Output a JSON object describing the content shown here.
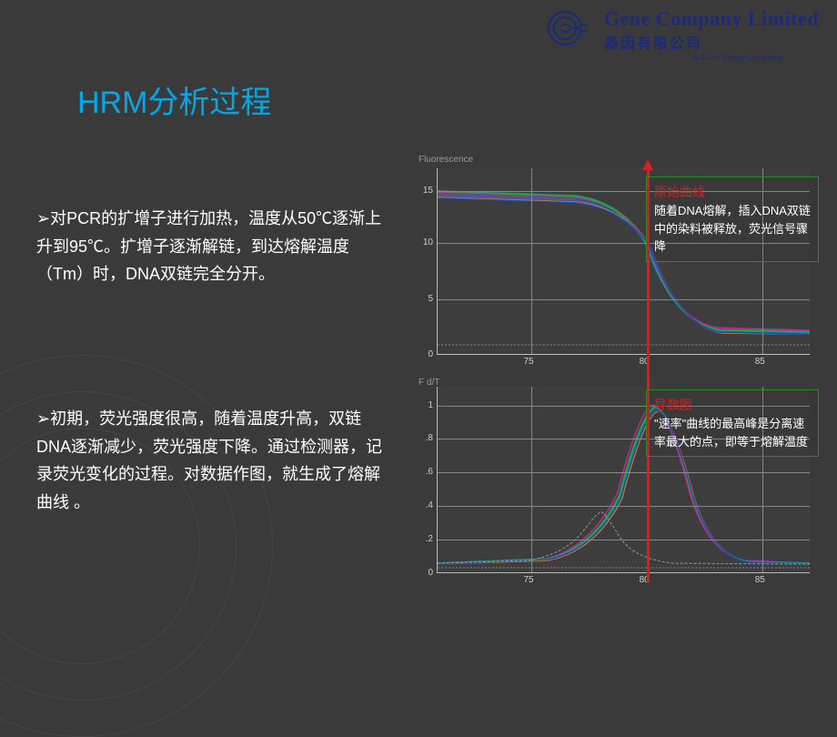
{
  "logo": {
    "en": "Gene Company Limited",
    "cn": "基因有限公司",
    "tag": "A Gene Group Company"
  },
  "title": "HRM分析过程",
  "paragraphs": {
    "p1": "对PCR的扩增子进行加热，温度从50℃逐渐上升到95℃。扩增子逐渐解链，到达熔解温度（Tm）时，DNA双链完全分开。",
    "p2": "初期，荧光强度很高，随着温度升高，双链DNA逐渐减少，荧光强度下降。通过检测器，记录荧光变化的过程。对数据作图，就生成了熔解曲线 。"
  },
  "chart1": {
    "type": "line",
    "y_title": "Fluorescence",
    "x_ticks": [
      "75",
      "80",
      "85"
    ],
    "y_ticks": [
      "0",
      "5",
      "10",
      "15"
    ],
    "colors": [
      "#2a9d2a",
      "#1e6fd8",
      "#c02a92",
      "#d07820",
      "#16a085",
      "#2244aa"
    ],
    "x_tick_positions": [
      0.25,
      0.56,
      0.87
    ],
    "y_tick_positions": [
      1.0,
      0.7,
      0.4,
      0.12
    ],
    "grid_h": [
      0.12,
      0.4,
      0.7
    ],
    "grid_v": [
      0.25,
      0.56,
      0.87
    ]
  },
  "chart2": {
    "type": "line",
    "y_title": "F d/T",
    "x_ticks": [
      "75",
      "80",
      "85"
    ],
    "y_ticks": [
      "0",
      ".2",
      ".4",
      ".6",
      ".8",
      "1"
    ],
    "colors": [
      "#2a9d2a",
      "#1e6fd8",
      "#c02a92",
      "#d07820",
      "#16a085",
      "#2244aa"
    ],
    "x_tick_positions": [
      0.25,
      0.56,
      0.87
    ],
    "y_tick_positions": [
      1.0,
      0.82,
      0.64,
      0.46,
      0.28,
      0.1
    ],
    "grid_h": [
      0.1,
      0.28,
      0.46,
      0.64,
      0.82
    ],
    "grid_v": [
      0.25,
      0.56,
      0.87
    ]
  },
  "annotations": {
    "a1": {
      "title": "原始曲线",
      "body": "随着DNA熔解，插入DNA双链中的染料被释放，荧光信号骤降"
    },
    "a2": {
      "title": "导数图",
      "body": "\"速率\"曲线的最高峰是分离速率最大的点，即等于熔解温度"
    }
  },
  "vertical_line_x": 0.56,
  "bg": "#3a3a3a",
  "accent": "#00a8e8",
  "red": "#d32020",
  "green_border": "#2a8a2a"
}
